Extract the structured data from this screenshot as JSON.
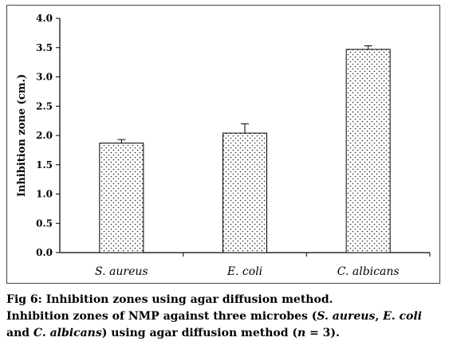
{
  "chart_data": {
    "type": "bar",
    "title": "",
    "xlabel": "",
    "ylabel": "Inhibition zone (cm.)",
    "categories": [
      "S. aureus",
      "E. coli",
      "C. albicans"
    ],
    "values": [
      1.87,
      2.04,
      3.47
    ],
    "errors": [
      0.06,
      0.16,
      0.06
    ],
    "ylim": [
      0,
      4.0
    ],
    "yticks": [
      "0.0",
      "0.5",
      "1.0",
      "1.5",
      "2.0",
      "2.5",
      "3.0",
      "3.5",
      "4.0"
    ],
    "grid": false,
    "legend": "none",
    "bar_pattern": "dotted",
    "bar_color": "#ffffff",
    "dot_color": "#222222"
  },
  "caption": {
    "title": "Fig 6: Inhibition zones using agar diffusion method.",
    "line1_pre": "Inhibition zones of NMP against three microbes (",
    "sp1": "S. aureus",
    "sep1": ", ",
    "sp2": "E. coli",
    "line2_pre": "and ",
    "sp3": "C. albicans",
    "line2_post": ") using agar diffusion method (",
    "n_symbol": "n",
    "n_value": " = 3)."
  }
}
